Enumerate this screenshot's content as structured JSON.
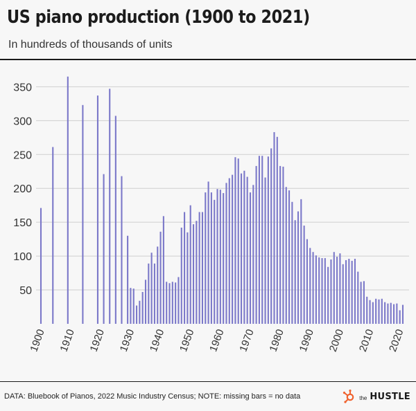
{
  "header": {
    "title": "US piano production (1900 to 2021)",
    "subtitle": "In hundreds of thousands of units"
  },
  "footer": {
    "source": "DATA: Bluebook of Pianos, 2022 Music Industry Census; NOTE: missing bars = no data",
    "brand_the": "the",
    "brand_name": "HUSTLE"
  },
  "colors": {
    "bar": "#7b78c9",
    "grid": "#cfcfcf",
    "background": "#f7f7f7",
    "brand_accent": "#f0622e"
  },
  "chart_data": {
    "type": "bar",
    "title": "US piano production (1900 to 2021)",
    "subtitle": "In hundreds of thousands of units",
    "xlabel": "",
    "ylabel": "",
    "xlim": [
      1900,
      2021
    ],
    "ylim": [
      0,
      380
    ],
    "yticks": [
      50,
      100,
      150,
      200,
      250,
      300,
      350
    ],
    "xticks": [
      1900,
      1910,
      1920,
      1930,
      1940,
      1950,
      1960,
      1970,
      1980,
      1990,
      2000,
      2010,
      2020
    ],
    "grid": true,
    "legend": "none",
    "x": [
      1900,
      1904,
      1909,
      1914,
      1919,
      1921,
      1923,
      1925,
      1927,
      1929,
      1930,
      1931,
      1932,
      1933,
      1934,
      1935,
      1936,
      1937,
      1938,
      1939,
      1940,
      1941,
      1942,
      1943,
      1944,
      1945,
      1946,
      1947,
      1948,
      1949,
      1950,
      1951,
      1952,
      1953,
      1954,
      1955,
      1956,
      1957,
      1958,
      1959,
      1960,
      1961,
      1962,
      1963,
      1964,
      1965,
      1966,
      1967,
      1968,
      1969,
      1970,
      1971,
      1972,
      1973,
      1974,
      1975,
      1976,
      1977,
      1978,
      1979,
      1980,
      1981,
      1982,
      1983,
      1984,
      1985,
      1986,
      1987,
      1988,
      1989,
      1990,
      1991,
      1992,
      1993,
      1994,
      1995,
      1996,
      1997,
      1998,
      1999,
      2000,
      2001,
      2002,
      2003,
      2004,
      2005,
      2006,
      2007,
      2008,
      2009,
      2010,
      2011,
      2012,
      2013,
      2014,
      2015,
      2016,
      2017,
      2018,
      2019,
      2020,
      2021
    ],
    "values": [
      171,
      261,
      365,
      323,
      337,
      221,
      347,
      307,
      218,
      130,
      53,
      52,
      27,
      34,
      47,
      65,
      89,
      105,
      89,
      114,
      136,
      159,
      62,
      60,
      62,
      61,
      69,
      142,
      165,
      135,
      175,
      147,
      152,
      165,
      165,
      194,
      210,
      194,
      183,
      199,
      198,
      193,
      208,
      215,
      220,
      246,
      244,
      222,
      226,
      217,
      194,
      205,
      233,
      248,
      248,
      216,
      247,
      259,
      283,
      276,
      233,
      232,
      202,
      197,
      180,
      153,
      166,
      184,
      145,
      125,
      112,
      106,
      101,
      98,
      97,
      97,
      84,
      95,
      106,
      99,
      104,
      88,
      94,
      96,
      93,
      96,
      77,
      62,
      63,
      40,
      35,
      32,
      37,
      36,
      37,
      32,
      30,
      31,
      29,
      30,
      20,
      28
    ]
  }
}
